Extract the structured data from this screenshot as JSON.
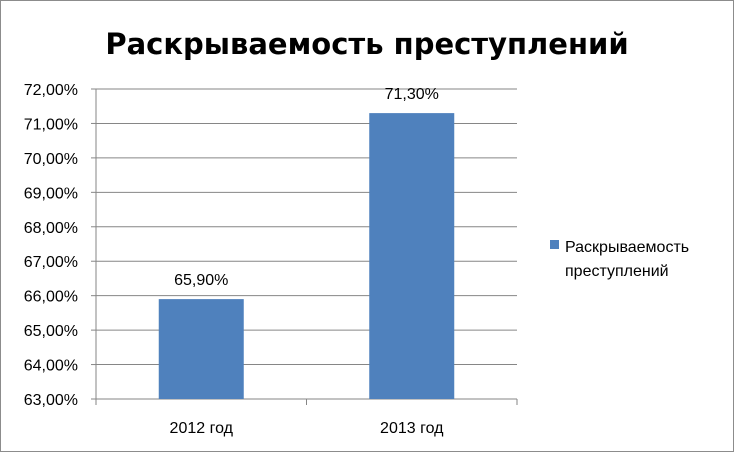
{
  "chart_data": {
    "type": "bar",
    "title": "Раскрываемость преступлений",
    "categories": [
      "2012 год",
      "2013 год"
    ],
    "series": [
      {
        "name": "Раскрываемость преступлений",
        "values": [
          65.9,
          71.3
        ],
        "data_labels": [
          "65,90%",
          "71,30%"
        ],
        "color": "#4f81bd"
      }
    ],
    "ylim": [
      63,
      72
    ],
    "yticks": [
      "63,00%",
      "64,00%",
      "65,00%",
      "66,00%",
      "67,00%",
      "68,00%",
      "69,00%",
      "70,00%",
      "71,00%",
      "72,00%"
    ],
    "grid": true,
    "legend_position": "right"
  }
}
